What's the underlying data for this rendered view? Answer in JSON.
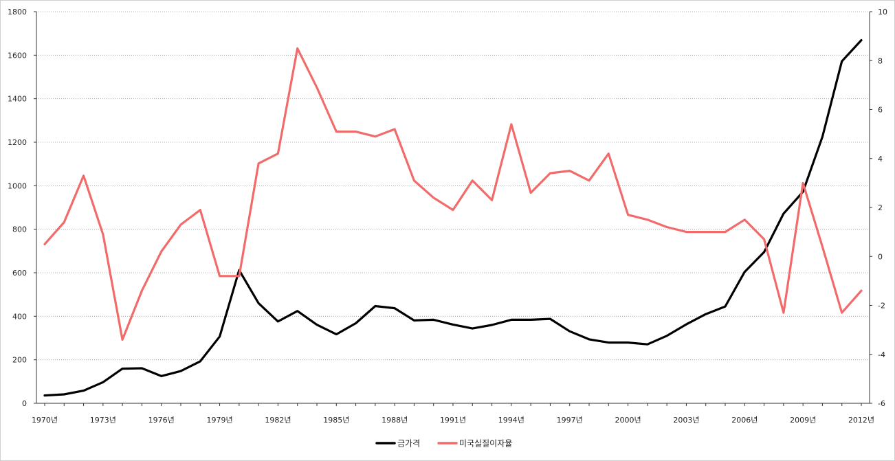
{
  "chart_data": {
    "type": "line",
    "title": "",
    "xlabel": "",
    "ylabel": "",
    "x": [
      1970,
      1971,
      1972,
      1973,
      1974,
      1975,
      1976,
      1977,
      1978,
      1979,
      1980,
      1981,
      1982,
      1983,
      1984,
      1985,
      1986,
      1987,
      1988,
      1989,
      1990,
      1991,
      1992,
      1993,
      1994,
      1995,
      1996,
      1997,
      1998,
      1999,
      2000,
      2001,
      2002,
      2003,
      2004,
      2005,
      2006,
      2007,
      2008,
      2009,
      2010,
      2011,
      2012
    ],
    "x_tick_labels": [
      "1970년",
      "1973년",
      "1976년",
      "1979년",
      "1982년",
      "1985년",
      "1988년",
      "1991년",
      "1994년",
      "1997년",
      "2000년",
      "2003년",
      "2006년",
      "2009년",
      "2012년"
    ],
    "x_tick_years": [
      1970,
      1973,
      1976,
      1979,
      1982,
      1985,
      1988,
      1991,
      1994,
      1997,
      2000,
      2003,
      2006,
      2009,
      2012
    ],
    "y_left": {
      "ylim": [
        0,
        1800
      ],
      "ticks": [
        "0",
        "200",
        "400",
        "600",
        "800",
        "1000",
        "1200",
        "1400",
        "1600",
        "1800"
      ]
    },
    "y_right": {
      "ylim": [
        -6,
        10
      ],
      "ticks": [
        "-6",
        "-4",
        "-2",
        "0",
        "2",
        "4",
        "6",
        "8",
        "10"
      ]
    },
    "grid": true,
    "legend_position": "bottom-center",
    "series": [
      {
        "name": "금가격",
        "axis": "left",
        "color": "#000000",
        "values": [
          36,
          41,
          58,
          97,
          159,
          161,
          125,
          148,
          193,
          307,
          612,
          460,
          376,
          424,
          361,
          317,
          368,
          447,
          437,
          381,
          384,
          362,
          344,
          360,
          384,
          384,
          388,
          331,
          294,
          279,
          279,
          271,
          310,
          363,
          410,
          445,
          604,
          695,
          872,
          972,
          1225,
          1572,
          1669
        ]
      },
      {
        "name": "미국실질이자율",
        "axis": "right",
        "color": "#f26b6b",
        "values": [
          0.5,
          1.4,
          3.3,
          0.9,
          -3.4,
          -1.4,
          0.2,
          1.3,
          1.9,
          -0.8,
          -0.8,
          3.8,
          4.2,
          8.5,
          6.9,
          5.1,
          5.1,
          4.9,
          5.2,
          3.1,
          2.4,
          1.9,
          3.1,
          2.3,
          5.4,
          2.6,
          3.4,
          3.5,
          3.1,
          4.2,
          1.7,
          1.5,
          1.2,
          1.0,
          1.0,
          1.0,
          1.5,
          0.7,
          -2.3,
          3.0,
          0.4,
          -2.3,
          -1.4
        ]
      }
    ]
  }
}
